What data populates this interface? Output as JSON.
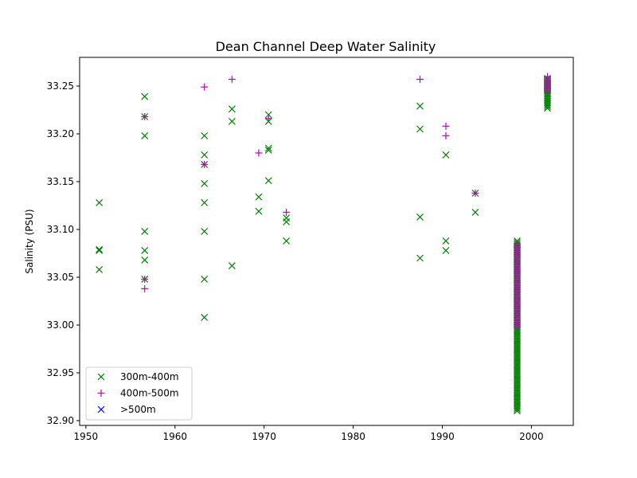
{
  "chart_data": {
    "type": "scatter",
    "title": "Dean Channel Deep Water Salinity",
    "xlabel": "",
    "ylabel": "Salinity (PSU)",
    "xlim": [
      1949.3,
      2004.7
    ],
    "ylim": [
      32.895,
      33.28
    ],
    "x_ticks": [
      1950,
      1960,
      1970,
      1980,
      1990,
      2000
    ],
    "y_ticks": [
      32.9,
      32.95,
      33.0,
      33.05,
      33.1,
      33.15,
      33.2,
      33.25
    ],
    "y_tick_decimals": 2,
    "grid": false,
    "legend": {
      "placement": "lower-left"
    },
    "series": [
      {
        "name": "300m-400m",
        "marker": "x",
        "color": "#008000",
        "points": [
          [
            1951.5,
            33.128
          ],
          [
            1951.5,
            33.078
          ],
          [
            1951.5,
            33.079
          ],
          [
            1951.5,
            33.058
          ],
          [
            1956.6,
            33.239
          ],
          [
            1956.6,
            33.218
          ],
          [
            1956.6,
            33.198
          ],
          [
            1956.6,
            33.098
          ],
          [
            1956.6,
            33.078
          ],
          [
            1956.6,
            33.068
          ],
          [
            1956.6,
            33.048
          ],
          [
            1963.3,
            33.198
          ],
          [
            1963.3,
            33.178
          ],
          [
            1963.3,
            33.168
          ],
          [
            1963.3,
            33.148
          ],
          [
            1963.3,
            33.128
          ],
          [
            1963.3,
            33.098
          ],
          [
            1963.3,
            33.048
          ],
          [
            1963.3,
            33.008
          ],
          [
            1966.4,
            33.226
          ],
          [
            1966.4,
            33.213
          ],
          [
            1966.4,
            33.062
          ],
          [
            1969.4,
            33.134
          ],
          [
            1969.4,
            33.119
          ],
          [
            1970.5,
            33.22
          ],
          [
            1970.5,
            33.213
          ],
          [
            1970.5,
            33.185
          ],
          [
            1970.5,
            33.183
          ],
          [
            1970.5,
            33.151
          ],
          [
            1972.5,
            33.112
          ],
          [
            1972.5,
            33.108
          ],
          [
            1972.5,
            33.088
          ],
          [
            1987.5,
            33.229
          ],
          [
            1987.5,
            33.205
          ],
          [
            1987.5,
            33.113
          ],
          [
            1987.5,
            33.07
          ],
          [
            1990.4,
            33.178
          ],
          [
            1990.4,
            33.088
          ],
          [
            1990.4,
            33.078
          ],
          [
            1993.7,
            33.138
          ],
          [
            1993.7,
            33.118
          ]
        ],
        "range_segments": [
          [
            1998.4,
            32.91,
            33.088
          ],
          [
            2001.8,
            33.226,
            33.258
          ]
        ]
      },
      {
        "name": "400m-500m",
        "marker": "+",
        "color": "#bf00bf",
        "points": [
          [
            1956.6,
            33.218
          ],
          [
            1956.6,
            33.048
          ],
          [
            1956.6,
            33.038
          ],
          [
            1963.3,
            33.249
          ],
          [
            1963.3,
            33.168
          ],
          [
            1966.4,
            33.257
          ],
          [
            1969.4,
            33.18
          ],
          [
            1970.5,
            33.216
          ],
          [
            1972.5,
            33.118
          ],
          [
            1987.5,
            33.257
          ],
          [
            1990.4,
            33.208
          ],
          [
            1990.4,
            33.198
          ],
          [
            1993.7,
            33.138
          ]
        ],
        "range_segments": [
          [
            1998.4,
            32.997,
            33.085
          ],
          [
            2001.8,
            33.242,
            33.26
          ]
        ]
      },
      {
        "name": ">500m",
        "marker": "x",
        "color": "#0000ff",
        "points": [],
        "range_segments": []
      }
    ]
  }
}
